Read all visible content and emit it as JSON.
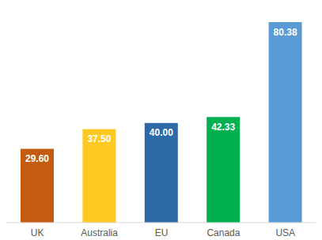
{
  "chart_data": {
    "type": "bar",
    "categories": [
      "UK",
      "Australia",
      "EU",
      "Canada",
      "USA"
    ],
    "values": [
      29.6,
      37.5,
      40.0,
      42.33,
      80.38
    ],
    "value_labels": [
      "29.60",
      "37.50",
      "40.00",
      "42.33",
      "80.38"
    ],
    "colors": [
      "#c55a11",
      "#ffc822",
      "#2e6aa8",
      "#00b050",
      "#5b9bd5"
    ],
    "ylim": [
      0,
      88
    ],
    "data_labels": true,
    "tick_labels": "x",
    "grid": false
  }
}
